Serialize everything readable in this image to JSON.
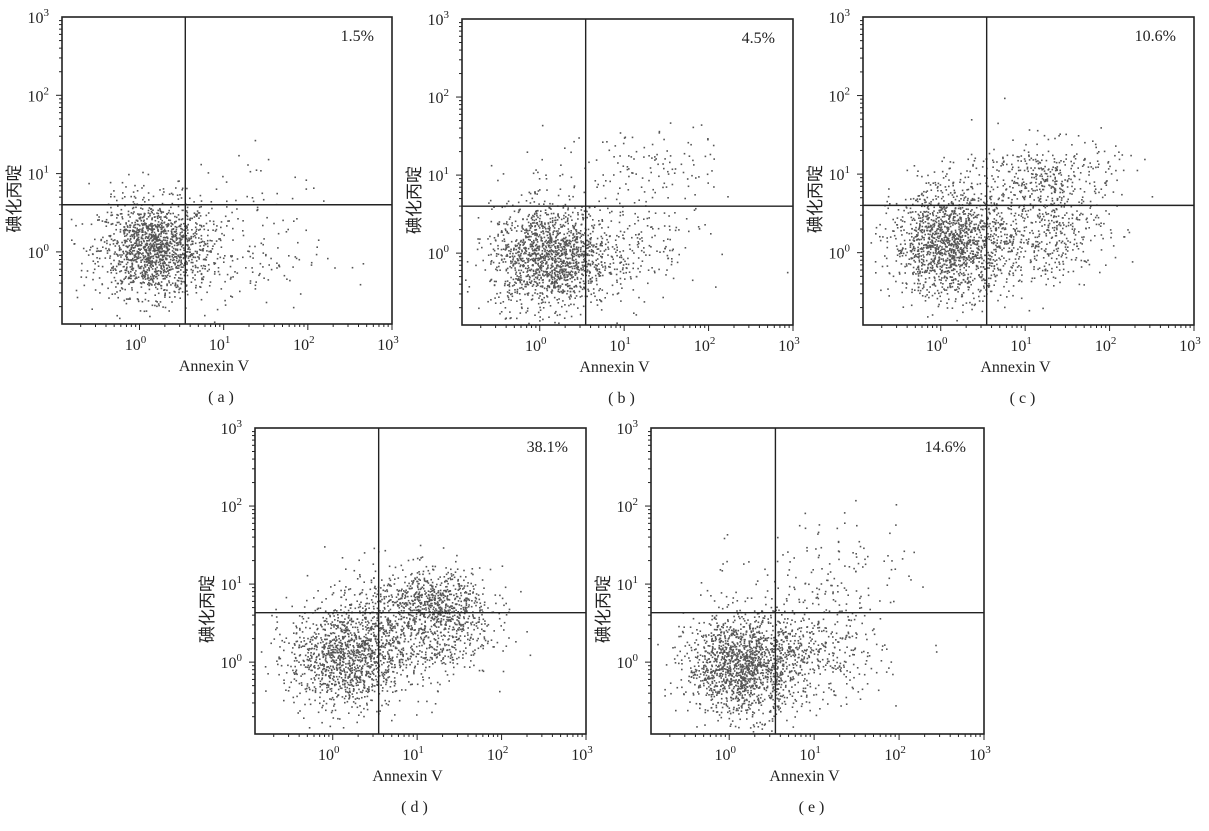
{
  "colors": {
    "dots": "#555555",
    "axes": "#222222",
    "background": "#ffffff"
  },
  "chart_data": [
    {
      "type": "scatter",
      "panel_label": "( a )",
      "percent": "1.5%",
      "xlabel": "Annexin V",
      "ylabel": "碘化丙啶",
      "xscale": "log",
      "yscale": "log",
      "xlim": [
        0.12,
        1000
      ],
      "ylim": [
        0.12,
        1000
      ],
      "x_threshold": 3.5,
      "y_threshold": 4.0,
      "x_ticks": [
        "10^0",
        "10^1",
        "10^2",
        "10^3"
      ],
      "y_ticks": [
        "10^0",
        "10^1",
        "10^2",
        "10^3"
      ],
      "populations": [
        {
          "quadrant": "lower-left",
          "count": 1500,
          "center": [
            1.5,
            1.1
          ],
          "spread": [
            0.33,
            0.3
          ]
        },
        {
          "quadrant": "lower-right",
          "count": 160,
          "center": [
            12,
            0.9
          ],
          "spread": [
            0.55,
            0.35
          ]
        },
        {
          "quadrant": "upper-right",
          "count": 25,
          "center": [
            15,
            8
          ],
          "spread": [
            0.45,
            0.25
          ]
        },
        {
          "quadrant": "upper-left",
          "count": 20,
          "center": [
            1.5,
            6
          ],
          "spread": [
            0.3,
            0.2
          ]
        }
      ]
    },
    {
      "type": "scatter",
      "panel_label": "( b )",
      "percent": "4.5%",
      "xlabel": "Annexin V",
      "ylabel": "碘化丙啶",
      "xscale": "log",
      "yscale": "log",
      "xlim": [
        0.12,
        1000
      ],
      "ylim": [
        0.12,
        1000
      ],
      "x_threshold": 3.5,
      "y_threshold": 4.0,
      "x_ticks": [
        "10^0",
        "10^1",
        "10^2",
        "10^3"
      ],
      "y_ticks": [
        "10^0",
        "10^1",
        "10^2",
        "10^3"
      ],
      "populations": [
        {
          "quadrant": "lower-left",
          "count": 1500,
          "center": [
            1.3,
            0.9
          ],
          "spread": [
            0.35,
            0.33
          ]
        },
        {
          "quadrant": "lower-right",
          "count": 220,
          "center": [
            10,
            1.2
          ],
          "spread": [
            0.45,
            0.35
          ]
        },
        {
          "quadrant": "upper-right",
          "count": 110,
          "center": [
            20,
            12
          ],
          "spread": [
            0.4,
            0.3
          ]
        },
        {
          "quadrant": "upper-left",
          "count": 30,
          "center": [
            1.5,
            8
          ],
          "spread": [
            0.3,
            0.3
          ]
        }
      ]
    },
    {
      "type": "scatter",
      "panel_label": "( c )",
      "percent": "10.6%",
      "xlabel": "Annexin V",
      "ylabel": "碘化丙啶",
      "xscale": "log",
      "yscale": "log",
      "xlim": [
        0.12,
        1000
      ],
      "ylim": [
        0.12,
        1000
      ],
      "x_threshold": 3.5,
      "y_threshold": 4.0,
      "x_ticks": [
        "10^0",
        "10^1",
        "10^2",
        "10^3"
      ],
      "y_ticks": [
        "10^0",
        "10^1",
        "10^2",
        "10^3"
      ],
      "populations": [
        {
          "quadrant": "lower-left",
          "count": 1500,
          "center": [
            1.3,
            1.3
          ],
          "spread": [
            0.35,
            0.33
          ]
        },
        {
          "quadrant": "lower-right",
          "count": 500,
          "center": [
            15,
            2.0
          ],
          "spread": [
            0.4,
            0.35
          ]
        },
        {
          "quadrant": "upper-right",
          "count": 300,
          "center": [
            20,
            10
          ],
          "spread": [
            0.4,
            0.22
          ]
        },
        {
          "quadrant": "upper-left",
          "count": 60,
          "center": [
            1.5,
            8
          ],
          "spread": [
            0.3,
            0.25
          ]
        }
      ]
    },
    {
      "type": "scatter",
      "panel_label": "( d )",
      "percent": "38.1%",
      "xlabel": "Annexin V",
      "ylabel": "碘化丙啶",
      "xscale": "log",
      "yscale": "log",
      "xlim": [
        0.12,
        1000
      ],
      "ylim": [
        0.12,
        1000
      ],
      "x_threshold": 3.5,
      "y_threshold": 4.3,
      "x_ticks": [
        "10^0",
        "10^1",
        "10^2",
        "10^3"
      ],
      "y_ticks": [
        "10^0",
        "10^1",
        "10^2",
        "10^3"
      ],
      "populations": [
        {
          "quadrant": "lower-left",
          "count": 1300,
          "center": [
            1.5,
            1.2
          ],
          "spread": [
            0.35,
            0.33
          ]
        },
        {
          "quadrant": "lower-right",
          "count": 500,
          "center": [
            15,
            2.5
          ],
          "spread": [
            0.35,
            0.3
          ]
        },
        {
          "quadrant": "upper-right",
          "count": 600,
          "center": [
            15,
            6
          ],
          "spread": [
            0.35,
            0.22
          ]
        },
        {
          "quadrant": "upper-left",
          "count": 60,
          "center": [
            2,
            8
          ],
          "spread": [
            0.25,
            0.3
          ]
        }
      ]
    },
    {
      "type": "scatter",
      "panel_label": "( e )",
      "percent": "14.6%",
      "xlabel": "Annexin V",
      "ylabel": "碘化丙啶",
      "xscale": "log",
      "yscale": "log",
      "xlim": [
        0.12,
        1000
      ],
      "ylim": [
        0.12,
        1000
      ],
      "x_threshold": 3.5,
      "y_threshold": 4.3,
      "x_ticks": [
        "10^0",
        "10^1",
        "10^2",
        "10^3"
      ],
      "y_ticks": [
        "10^0",
        "10^1",
        "10^2",
        "10^3"
      ],
      "populations": [
        {
          "quadrant": "lower-left",
          "count": 1500,
          "center": [
            1.4,
            0.9
          ],
          "spread": [
            0.33,
            0.32
          ]
        },
        {
          "quadrant": "lower-right",
          "count": 400,
          "center": [
            10,
            1.3
          ],
          "spread": [
            0.4,
            0.32
          ]
        },
        {
          "quadrant": "upper-right",
          "count": 120,
          "center": [
            20,
            15
          ],
          "spread": [
            0.45,
            0.35
          ]
        },
        {
          "quadrant": "upper-left",
          "count": 25,
          "center": [
            2,
            8
          ],
          "spread": [
            0.3,
            0.3
          ]
        }
      ]
    }
  ]
}
